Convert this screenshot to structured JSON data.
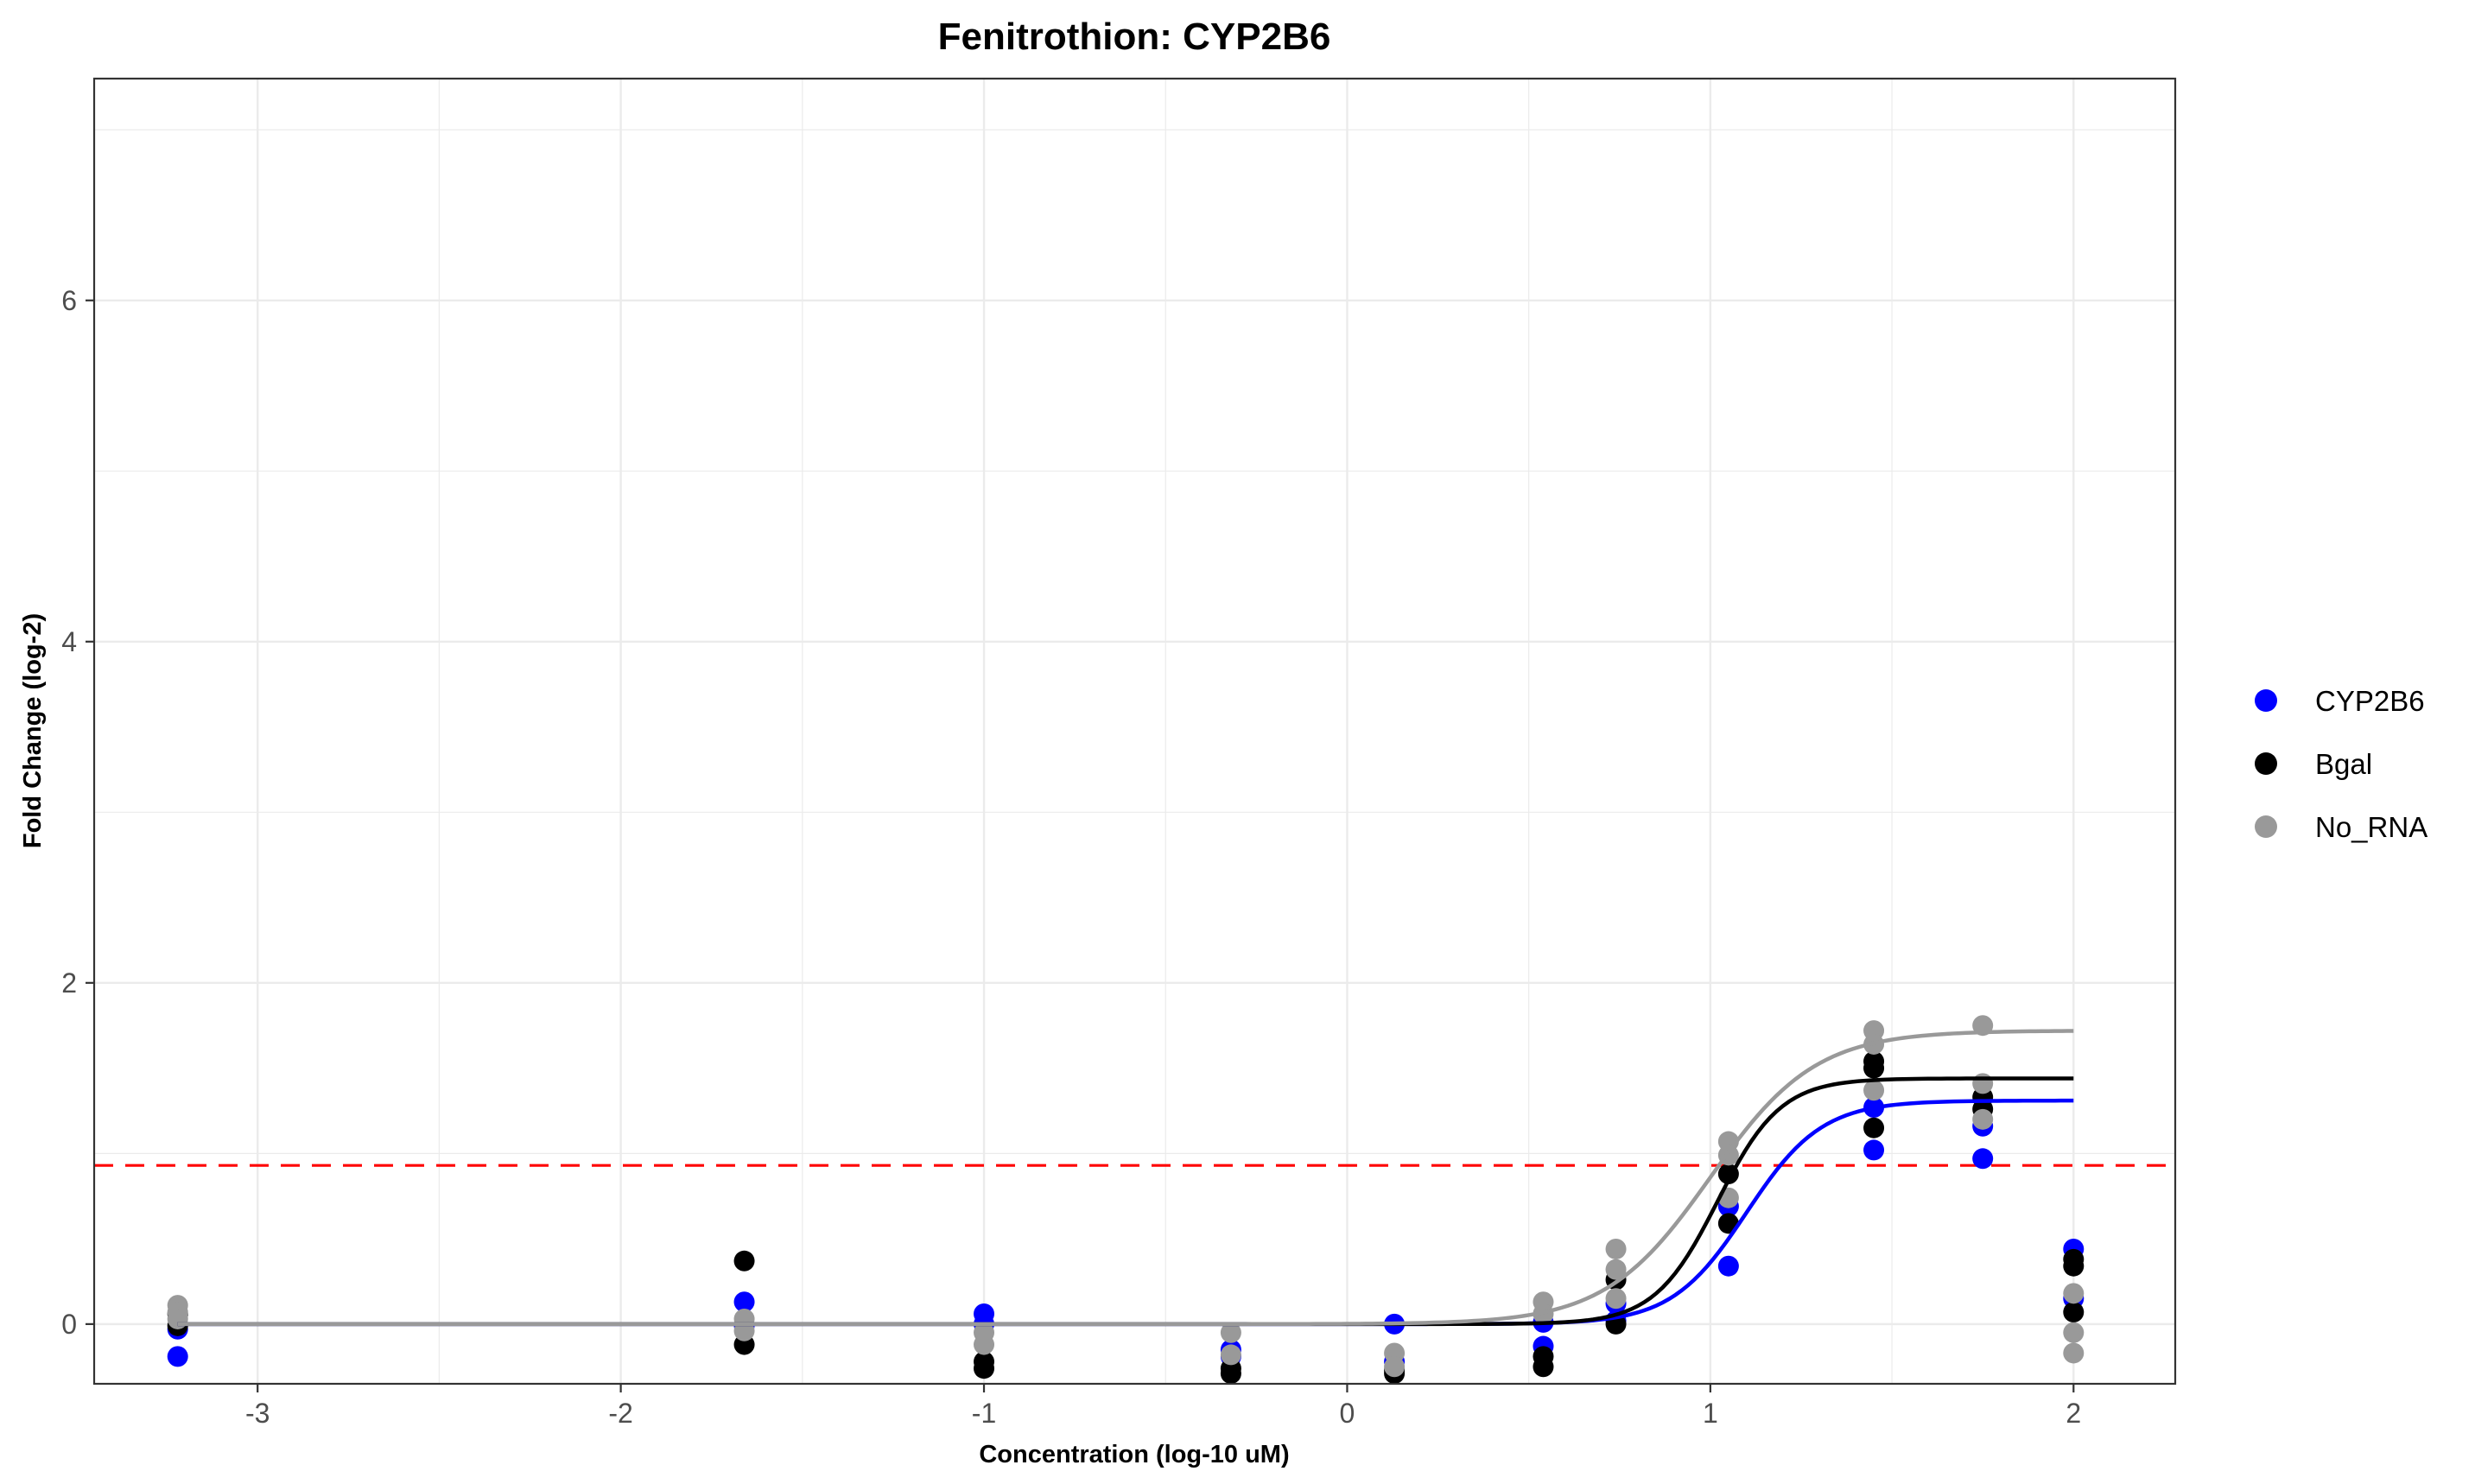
{
  "chart_data": {
    "type": "scatter",
    "title": "Fenitrothion: CYP2B6",
    "xlabel": "Concentration (log-10 uM)",
    "ylabel": "Fold Change (log-2)",
    "xlim": [
      -3.45,
      2.28
    ],
    "ylim": [
      -0.35,
      7.3
    ],
    "x_ticks": [
      -3,
      -2,
      -1,
      0,
      1,
      2
    ],
    "y_ticks": [
      0,
      2,
      4,
      6
    ],
    "x_tick_labels": [
      "-3",
      "-2",
      "-1",
      "0",
      "1",
      "2"
    ],
    "y_tick_labels": [
      "0",
      "2",
      "4",
      "6"
    ],
    "grid": true,
    "legend_position": "right",
    "threshold": {
      "y": 0.93,
      "color": "#ff0000",
      "style": "dashed"
    },
    "series": [
      {
        "name": "CYP2B6",
        "color": "#0000ff",
        "points": [
          [
            -3.22,
            -0.03
          ],
          [
            -3.22,
            -0.19
          ],
          [
            -1.66,
            0.13
          ],
          [
            -1.66,
            -0.01
          ],
          [
            -1.0,
            0.06
          ],
          [
            -1.0,
            0.0
          ],
          [
            -0.32,
            -0.15
          ],
          [
            -0.32,
            -0.19
          ],
          [
            0.13,
            0.0
          ],
          [
            0.13,
            -0.22
          ],
          [
            0.54,
            -0.13
          ],
          [
            0.54,
            0.01
          ],
          [
            0.74,
            0.12
          ],
          [
            0.74,
            0.02
          ],
          [
            1.05,
            0.34
          ],
          [
            1.05,
            0.69
          ],
          [
            1.45,
            1.02
          ],
          [
            1.45,
            1.27
          ],
          [
            1.75,
            0.97
          ],
          [
            1.75,
            1.16
          ],
          [
            2.0,
            0.44
          ],
          [
            2.0,
            0.15
          ]
        ],
        "curve": {
          "bottom": 0.0,
          "top": 1.31,
          "ec50": 1.1,
          "hill": 4.2
        }
      },
      {
        "name": "Bgal",
        "color": "#000000",
        "points": [
          [
            -3.22,
            0.06
          ],
          [
            -3.22,
            -0.01
          ],
          [
            -1.66,
            0.37
          ],
          [
            -1.66,
            -0.12
          ],
          [
            -1.0,
            -0.22
          ],
          [
            -1.0,
            -0.26
          ],
          [
            -0.32,
            -0.26
          ],
          [
            -0.32,
            -0.29
          ],
          [
            0.13,
            -0.27
          ],
          [
            0.13,
            -0.29
          ],
          [
            0.54,
            -0.19
          ],
          [
            0.54,
            -0.25
          ],
          [
            0.74,
            0.0
          ],
          [
            0.74,
            0.26
          ],
          [
            1.05,
            0.59
          ],
          [
            1.05,
            0.88
          ],
          [
            1.45,
            1.15
          ],
          [
            1.45,
            1.5
          ],
          [
            1.45,
            1.54
          ],
          [
            1.75,
            1.26
          ],
          [
            1.75,
            1.33
          ],
          [
            2.0,
            0.07
          ],
          [
            2.0,
            0.34
          ],
          [
            2.0,
            0.38
          ]
        ],
        "curve": {
          "bottom": 0.0,
          "top": 1.44,
          "ec50": 1.02,
          "hill": 5.0
        }
      },
      {
        "name": "No_RNA",
        "color": "#999999",
        "points": [
          [
            -3.22,
            0.11
          ],
          [
            -3.22,
            0.07
          ],
          [
            -3.22,
            0.03
          ],
          [
            -1.66,
            0.03
          ],
          [
            -1.66,
            -0.04
          ],
          [
            -1.0,
            -0.05
          ],
          [
            -1.0,
            -0.12
          ],
          [
            -0.32,
            -0.05
          ],
          [
            -0.32,
            -0.18
          ],
          [
            0.13,
            -0.17
          ],
          [
            0.13,
            -0.25
          ],
          [
            0.54,
            0.13
          ],
          [
            0.54,
            0.06
          ],
          [
            0.74,
            0.44
          ],
          [
            0.74,
            0.32
          ],
          [
            0.74,
            0.15
          ],
          [
            1.05,
            1.07
          ],
          [
            1.05,
            0.99
          ],
          [
            1.05,
            0.74
          ],
          [
            1.45,
            1.72
          ],
          [
            1.45,
            1.64
          ],
          [
            1.45,
            1.37
          ],
          [
            1.75,
            1.75
          ],
          [
            1.75,
            1.41
          ],
          [
            1.75,
            1.2
          ],
          [
            2.0,
            0.18
          ],
          [
            2.0,
            -0.05
          ],
          [
            2.0,
            -0.17
          ]
        ],
        "curve": {
          "bottom": 0.0,
          "top": 1.72,
          "ec50": 1.0,
          "hill": 3.0
        }
      }
    ]
  }
}
